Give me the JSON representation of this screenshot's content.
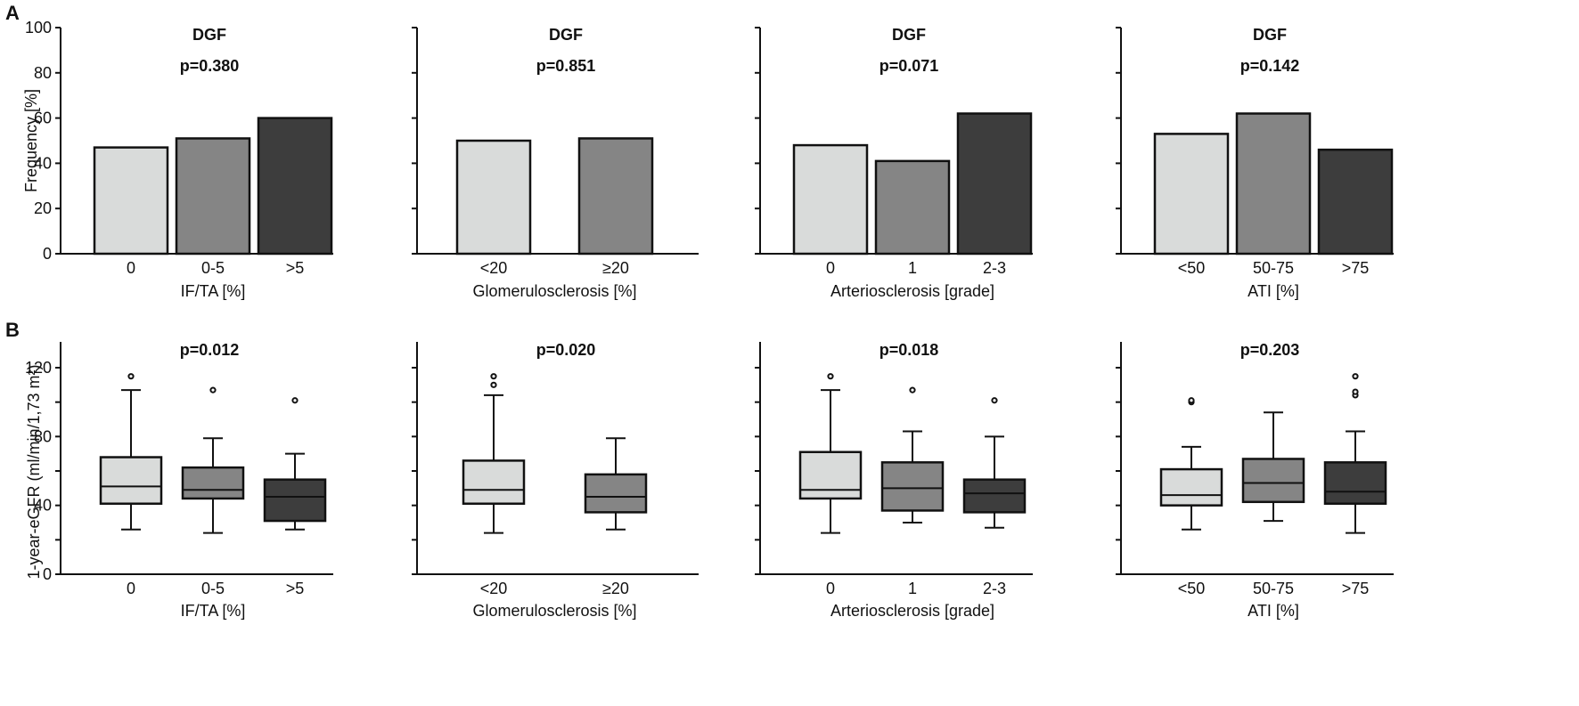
{
  "panel_letters": {
    "a": "A",
    "b": "B"
  },
  "colors": {
    "light": "#d9dbda",
    "mid": "#858585",
    "dark": "#3d3d3d"
  },
  "chart_data": [
    {
      "type": "bar",
      "panel": "A",
      "title": "DGF",
      "subtitle": "p=0.380",
      "xlabel": "IF/TA [%]",
      "ylabel": "Frequency [%]",
      "ylim": [
        0,
        100
      ],
      "yticks": [
        0,
        20,
        40,
        60,
        80,
        100
      ],
      "categories": [
        "0",
        "0-5",
        ">5"
      ],
      "values": [
        47,
        51,
        60
      ]
    },
    {
      "type": "bar",
      "panel": "A",
      "title": "DGF",
      "subtitle": "p=0.851",
      "xlabel": "Glomerulosclerosis [%]",
      "ylabel": "",
      "ylim": [
        0,
        100
      ],
      "categories": [
        "<20",
        "≥20"
      ],
      "values": [
        50,
        51
      ]
    },
    {
      "type": "bar",
      "panel": "A",
      "title": "DGF",
      "subtitle": "p=0.071",
      "xlabel": "Arteriosclerosis [grade]",
      "ylabel": "",
      "ylim": [
        0,
        100
      ],
      "categories": [
        "0",
        "1",
        "2-3"
      ],
      "values": [
        48,
        41,
        62
      ]
    },
    {
      "type": "bar",
      "panel": "A",
      "title": "DGF",
      "subtitle": "p=0.142",
      "xlabel": "ATI [%]",
      "ylabel": "",
      "ylim": [
        0,
        100
      ],
      "categories": [
        "<50",
        "50-75",
        ">75"
      ],
      "values": [
        53,
        62,
        46
      ]
    },
    {
      "type": "box",
      "panel": "B",
      "title": "p=0.012",
      "xlabel": "IF/TA [%]",
      "ylabel": "1-year-eGFR (ml/min/1,73 m²)",
      "ylim": [
        0,
        135
      ],
      "yticks": [
        0,
        40,
        80,
        120
      ],
      "categories": [
        "0",
        "0-5",
        ">5"
      ],
      "boxes": [
        {
          "min": 26,
          "q1": 41,
          "median": 51,
          "q3": 68,
          "max": 107,
          "outliers": [
            115
          ]
        },
        {
          "min": 24,
          "q1": 44,
          "median": 49,
          "q3": 62,
          "max": 79,
          "outliers": [
            107
          ]
        },
        {
          "min": 26,
          "q1": 31,
          "median": 45,
          "q3": 55,
          "max": 70,
          "outliers": [
            101
          ]
        }
      ]
    },
    {
      "type": "box",
      "panel": "B",
      "title": "p=0.020",
      "xlabel": "Glomerulosclerosis [%]",
      "ylabel": "",
      "ylim": [
        0,
        135
      ],
      "categories": [
        "<20",
        "≥20"
      ],
      "boxes": [
        {
          "min": 24,
          "q1": 41,
          "median": 49,
          "q3": 66,
          "max": 104,
          "outliers": [
            110,
            115
          ]
        },
        {
          "min": 26,
          "q1": 36,
          "median": 45,
          "q3": 58,
          "max": 79,
          "outliers": []
        }
      ]
    },
    {
      "type": "box",
      "panel": "B",
      "title": "p=0.018",
      "xlabel": "Arteriosclerosis [grade]",
      "ylabel": "",
      "ylim": [
        0,
        135
      ],
      "categories": [
        "0",
        "1",
        "2-3"
      ],
      "boxes": [
        {
          "min": 24,
          "q1": 44,
          "median": 49,
          "q3": 71,
          "max": 107,
          "outliers": [
            115
          ]
        },
        {
          "min": 30,
          "q1": 37,
          "median": 50,
          "q3": 65,
          "max": 83,
          "outliers": [
            107
          ]
        },
        {
          "min": 27,
          "q1": 36,
          "median": 47,
          "q3": 55,
          "max": 80,
          "outliers": [
            101
          ]
        }
      ]
    },
    {
      "type": "box",
      "panel": "B",
      "title": "p=0.203",
      "xlabel": "ATI [%]",
      "ylabel": "",
      "ylim": [
        0,
        135
      ],
      "categories": [
        "<50",
        "50-75",
        ">75"
      ],
      "boxes": [
        {
          "min": 26,
          "q1": 40,
          "median": 46,
          "q3": 61,
          "max": 74,
          "outliers": [
            100,
            101
          ]
        },
        {
          "min": 31,
          "q1": 42,
          "median": 53,
          "q3": 67,
          "max": 94,
          "outliers": []
        },
        {
          "min": 24,
          "q1": 41,
          "median": 48,
          "q3": 65,
          "max": 83,
          "outliers": [
            104,
            106,
            115
          ]
        }
      ]
    }
  ]
}
